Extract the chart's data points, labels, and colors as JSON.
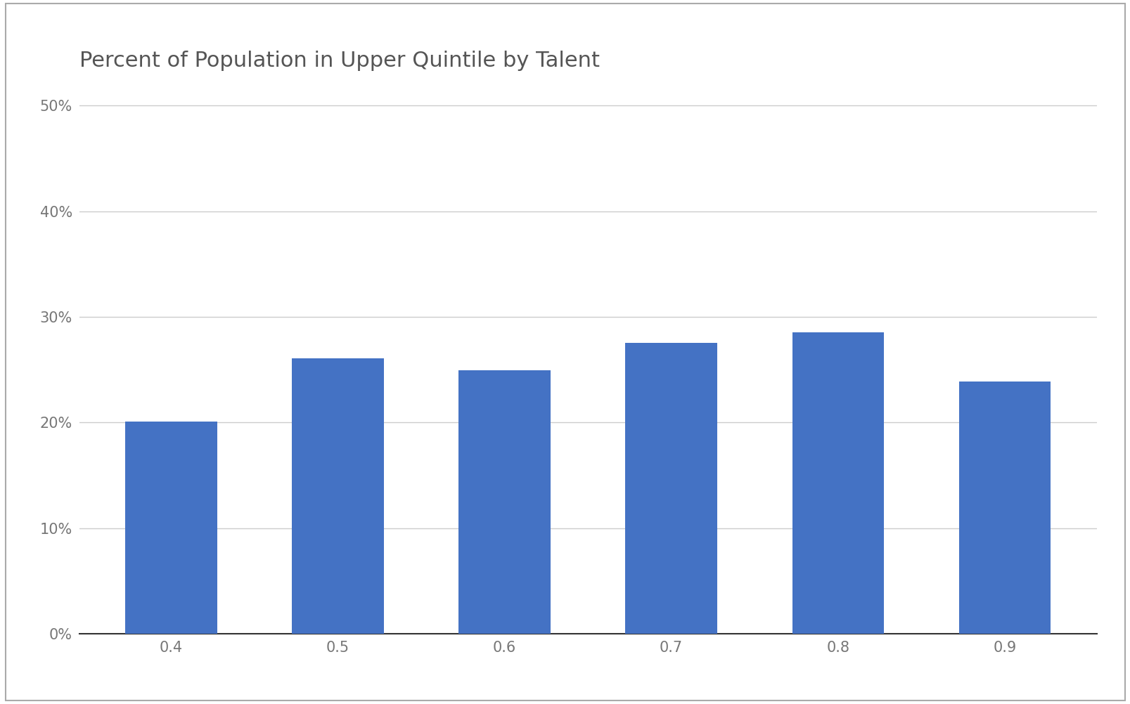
{
  "title": "Percent of Population in Upper Quintile by Talent",
  "categories": [
    "0.4",
    "0.5",
    "0.6",
    "0.7",
    "0.8",
    "0.9"
  ],
  "values": [
    0.2005,
    0.2605,
    0.2495,
    0.2755,
    0.285,
    0.239
  ],
  "bar_color": "#4472C4",
  "background_color": "#FFFFFF",
  "outer_border_color": "#AAAAAA",
  "grid_color": "#CCCCCC",
  "title_color": "#555555",
  "tick_label_color": "#777777",
  "ylim": [
    0,
    0.52
  ],
  "yticks": [
    0.0,
    0.1,
    0.2,
    0.3,
    0.4,
    0.5
  ],
  "title_fontsize": 22,
  "tick_fontsize": 15,
  "bar_width": 0.55
}
